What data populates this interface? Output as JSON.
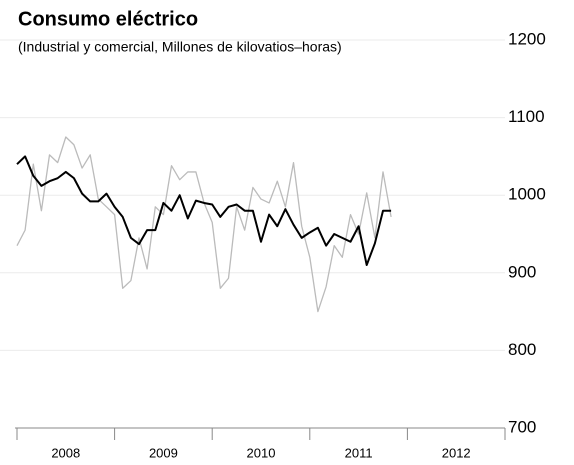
{
  "chart_data": {
    "type": "line",
    "title": "Consumo eléctrico",
    "subtitle": "(Industrial y comercial, Millones de kilovatios–horas)",
    "categories": [
      "2008",
      "2009",
      "2010",
      "2011",
      "2012"
    ],
    "xlim": [
      2008,
      2013
    ],
    "x": [
      2008,
      2008.083,
      2008.167,
      2008.25,
      2008.333,
      2008.417,
      2008.5,
      2008.583,
      2008.667,
      2008.75,
      2008.833,
      2008.917,
      2009,
      2009.083,
      2009.167,
      2009.25,
      2009.333,
      2009.417,
      2009.5,
      2009.583,
      2009.667,
      2009.75,
      2009.833,
      2009.917,
      2010,
      2010.083,
      2010.167,
      2010.25,
      2010.333,
      2010.417,
      2010.5,
      2010.583,
      2010.667,
      2010.75,
      2010.833,
      2010.917,
      2011,
      2011.083,
      2011.167,
      2011.25,
      2011.333,
      2011.417,
      2011.5,
      2011.583,
      2011.667,
      2011.75,
      2011.833
    ],
    "series": [
      {
        "color": "#bbbbbb",
        "values": [
          935,
          955,
          1040,
          980,
          1052,
          1042,
          1075,
          1065,
          1035,
          1052,
          995,
          985,
          975,
          880,
          890,
          945,
          905,
          985,
          975,
          1038,
          1020,
          1030,
          1030,
          990,
          965,
          880,
          893,
          985,
          955,
          1010,
          995,
          990,
          1018,
          985,
          1042,
          960,
          920,
          850,
          882,
          935,
          920,
          975,
          950,
          1003,
          945,
          1030,
          972
        ]
      },
      {
        "color": "#000000",
        "values": [
          1040,
          1050,
          1025,
          1012,
          1018,
          1022,
          1030,
          1022,
          1002,
          992,
          992,
          1002,
          985,
          972,
          945,
          937,
          955,
          955,
          990,
          980,
          1000,
          970,
          993,
          990,
          988,
          972,
          985,
          988,
          980,
          980,
          940,
          975,
          960,
          982,
          962,
          945,
          952,
          958,
          935,
          950,
          945,
          940,
          960,
          910,
          938,
          980,
          980
        ]
      }
    ],
    "ylim": [
      700,
      1200
    ],
    "yticks": [
      700,
      800,
      900,
      1000,
      1100,
      1200
    ],
    "grid": true
  }
}
